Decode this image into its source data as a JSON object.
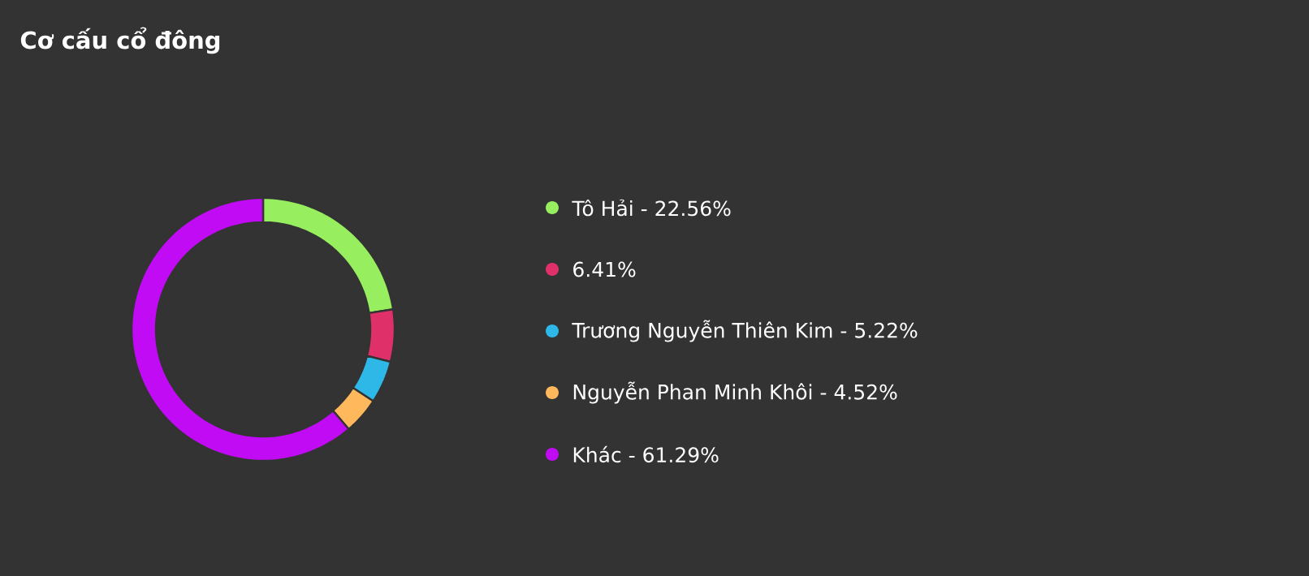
{
  "chart_data": {
    "type": "donut",
    "title": "Cơ cấu cổ đông",
    "categories": [
      "Tô Hải - 22.56%",
      "6.41%",
      "Trương Nguyễn Thiên Kim - 5.22%",
      "Nguyễn Phan Minh Khôi - 4.52%",
      "Khác - 61.29%"
    ],
    "values": [
      22.56,
      6.41,
      5.22,
      4.52,
      61.29
    ],
    "colors": [
      "#97ef5f",
      "#e0306a",
      "#2eb8e8",
      "#ffb85c",
      "#c10bf5"
    ],
    "legend": "right"
  }
}
